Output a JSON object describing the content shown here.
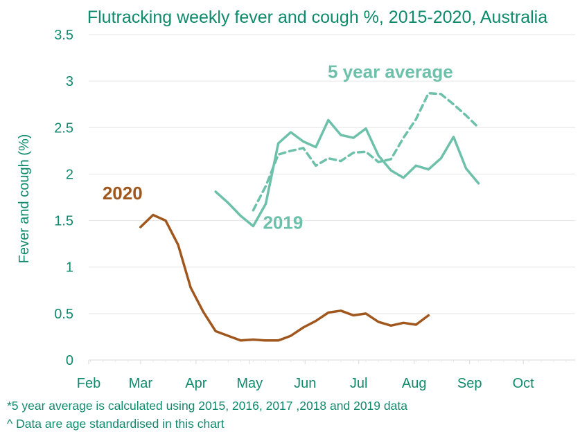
{
  "chart_data": {
    "type": "line",
    "title": "Flutracking weekly fever and cough %, 2015-2020, Australia",
    "ylabel": "Fever and cough (%)",
    "xlabel": "",
    "ylim": [
      0,
      3.5
    ],
    "yticks": [
      "0",
      "0.5",
      "1",
      "1.5",
      "2",
      "2.5",
      "3",
      "3.5"
    ],
    "xticks": [
      "Feb",
      "Mar",
      "Apr",
      "May",
      "Jun",
      "Jul",
      "Aug",
      "Sep",
      "Oct"
    ],
    "grid": true,
    "series": [
      {
        "name": "2020",
        "color": "#a0571e",
        "dash": false,
        "x": [
          "2020-03-01",
          "2020-03-08",
          "2020-03-15",
          "2020-03-22",
          "2020-03-29",
          "2020-04-05",
          "2020-04-12",
          "2020-04-19",
          "2020-04-26",
          "2020-05-03",
          "2020-05-10",
          "2020-05-17",
          "2020-05-24",
          "2020-05-31",
          "2020-06-07",
          "2020-06-14",
          "2020-06-21",
          "2020-06-28",
          "2020-07-05",
          "2020-07-12",
          "2020-07-19",
          "2020-07-26",
          "2020-08-02",
          "2020-08-09"
        ],
        "values": [
          1.43,
          1.56,
          1.5,
          1.24,
          0.78,
          0.52,
          0.31,
          0.26,
          0.21,
          0.22,
          0.21,
          0.21,
          0.26,
          0.35,
          0.42,
          0.51,
          0.53,
          0.48,
          0.5,
          0.41,
          0.37,
          0.4,
          0.38,
          0.48
        ]
      },
      {
        "name": "2019",
        "color": "#6dc0aa",
        "dash": false,
        "x": [
          "2020-04-12",
          "2020-04-19",
          "2020-04-26",
          "2020-05-03",
          "2020-05-10",
          "2020-05-17",
          "2020-05-24",
          "2020-05-31",
          "2020-06-07",
          "2020-06-14",
          "2020-06-21",
          "2020-06-28",
          "2020-07-05",
          "2020-07-12",
          "2020-07-19",
          "2020-07-26",
          "2020-08-02",
          "2020-08-09",
          "2020-08-16",
          "2020-08-23",
          "2020-08-30",
          "2020-09-06"
        ],
        "values": [
          1.81,
          1.69,
          1.55,
          1.44,
          1.68,
          2.33,
          2.45,
          2.35,
          2.29,
          2.58,
          2.42,
          2.39,
          2.49,
          2.2,
          2.04,
          1.96,
          2.09,
          2.05,
          2.17,
          2.4,
          2.06,
          1.9
        ]
      },
      {
        "name": "5 year average",
        "color": "#6dc0aa",
        "dash": true,
        "x": [
          "2020-05-03",
          "2020-05-10",
          "2020-05-17",
          "2020-05-24",
          "2020-05-31",
          "2020-06-07",
          "2020-06-14",
          "2020-06-21",
          "2020-06-28",
          "2020-07-05",
          "2020-07-12",
          "2020-07-19",
          "2020-07-26",
          "2020-08-02",
          "2020-08-09",
          "2020-08-16",
          "2020-08-23",
          "2020-08-30",
          "2020-09-06"
        ],
        "values": [
          1.61,
          1.87,
          2.21,
          2.25,
          2.28,
          2.09,
          2.17,
          2.14,
          2.23,
          2.24,
          2.13,
          2.16,
          2.39,
          2.59,
          2.87,
          2.86,
          2.75,
          2.63,
          2.5
        ]
      }
    ],
    "annotations": [
      {
        "text": "2020",
        "series": 0
      },
      {
        "text": "2019",
        "series": 1
      },
      {
        "text": "5 year average",
        "series": 2
      }
    ]
  },
  "footnotes": [
    "*5 year average is calculated using 2015, 2016, 2017 ,2018 and 2019 data",
    "^ Data are age standardised in this chart"
  ]
}
